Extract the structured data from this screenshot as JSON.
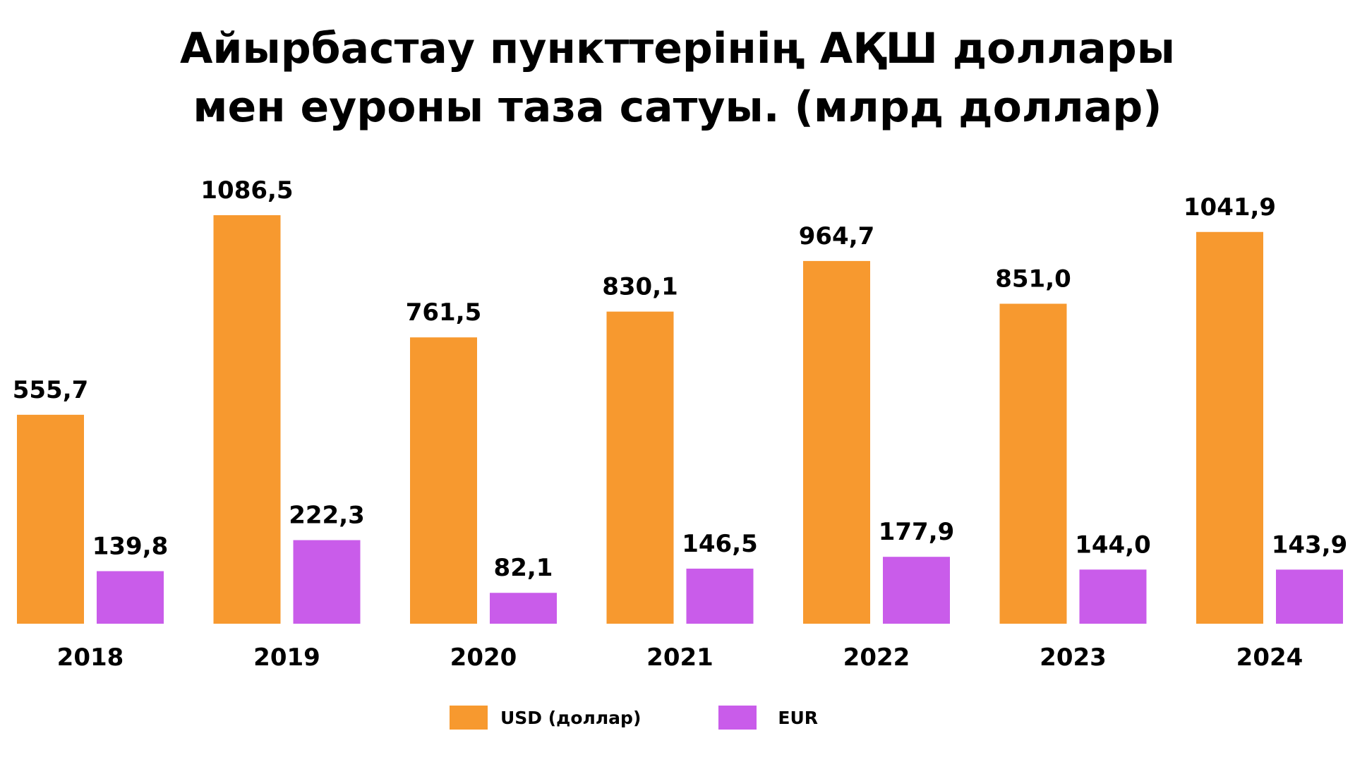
{
  "chart_data": {
    "type": "bar",
    "title_lines": [
      "Айырбастау пункттерінің АҚШ доллары",
      "мен еуроны таза сатуы. (млрд доллар)"
    ],
    "categories": [
      "2018",
      "2019",
      "2020",
      "2021",
      "2022",
      "2023",
      "2024"
    ],
    "series": [
      {
        "name": "USD (доллар)",
        "color": "#F7992F",
        "values": [
          555.7,
          1086.5,
          761.5,
          830.1,
          964.7,
          851.0,
          1041.9
        ],
        "labels": [
          "555,7",
          "1086,5",
          "761,5",
          "830,1",
          "964,7",
          "851,0",
          "1041,9"
        ]
      },
      {
        "name": "EUR",
        "color": "#C95CEA",
        "values": [
          139.8,
          222.3,
          82.1,
          146.5,
          177.9,
          144.0,
          143.9
        ],
        "labels": [
          "139,8",
          "222,3",
          "82,1",
          "146,5",
          "177,9",
          "144,0",
          "143,9"
        ]
      }
    ],
    "legend_position": "bottom",
    "grid": false,
    "y_axis_visible": false,
    "ylim": [
      0,
      1100
    ]
  }
}
